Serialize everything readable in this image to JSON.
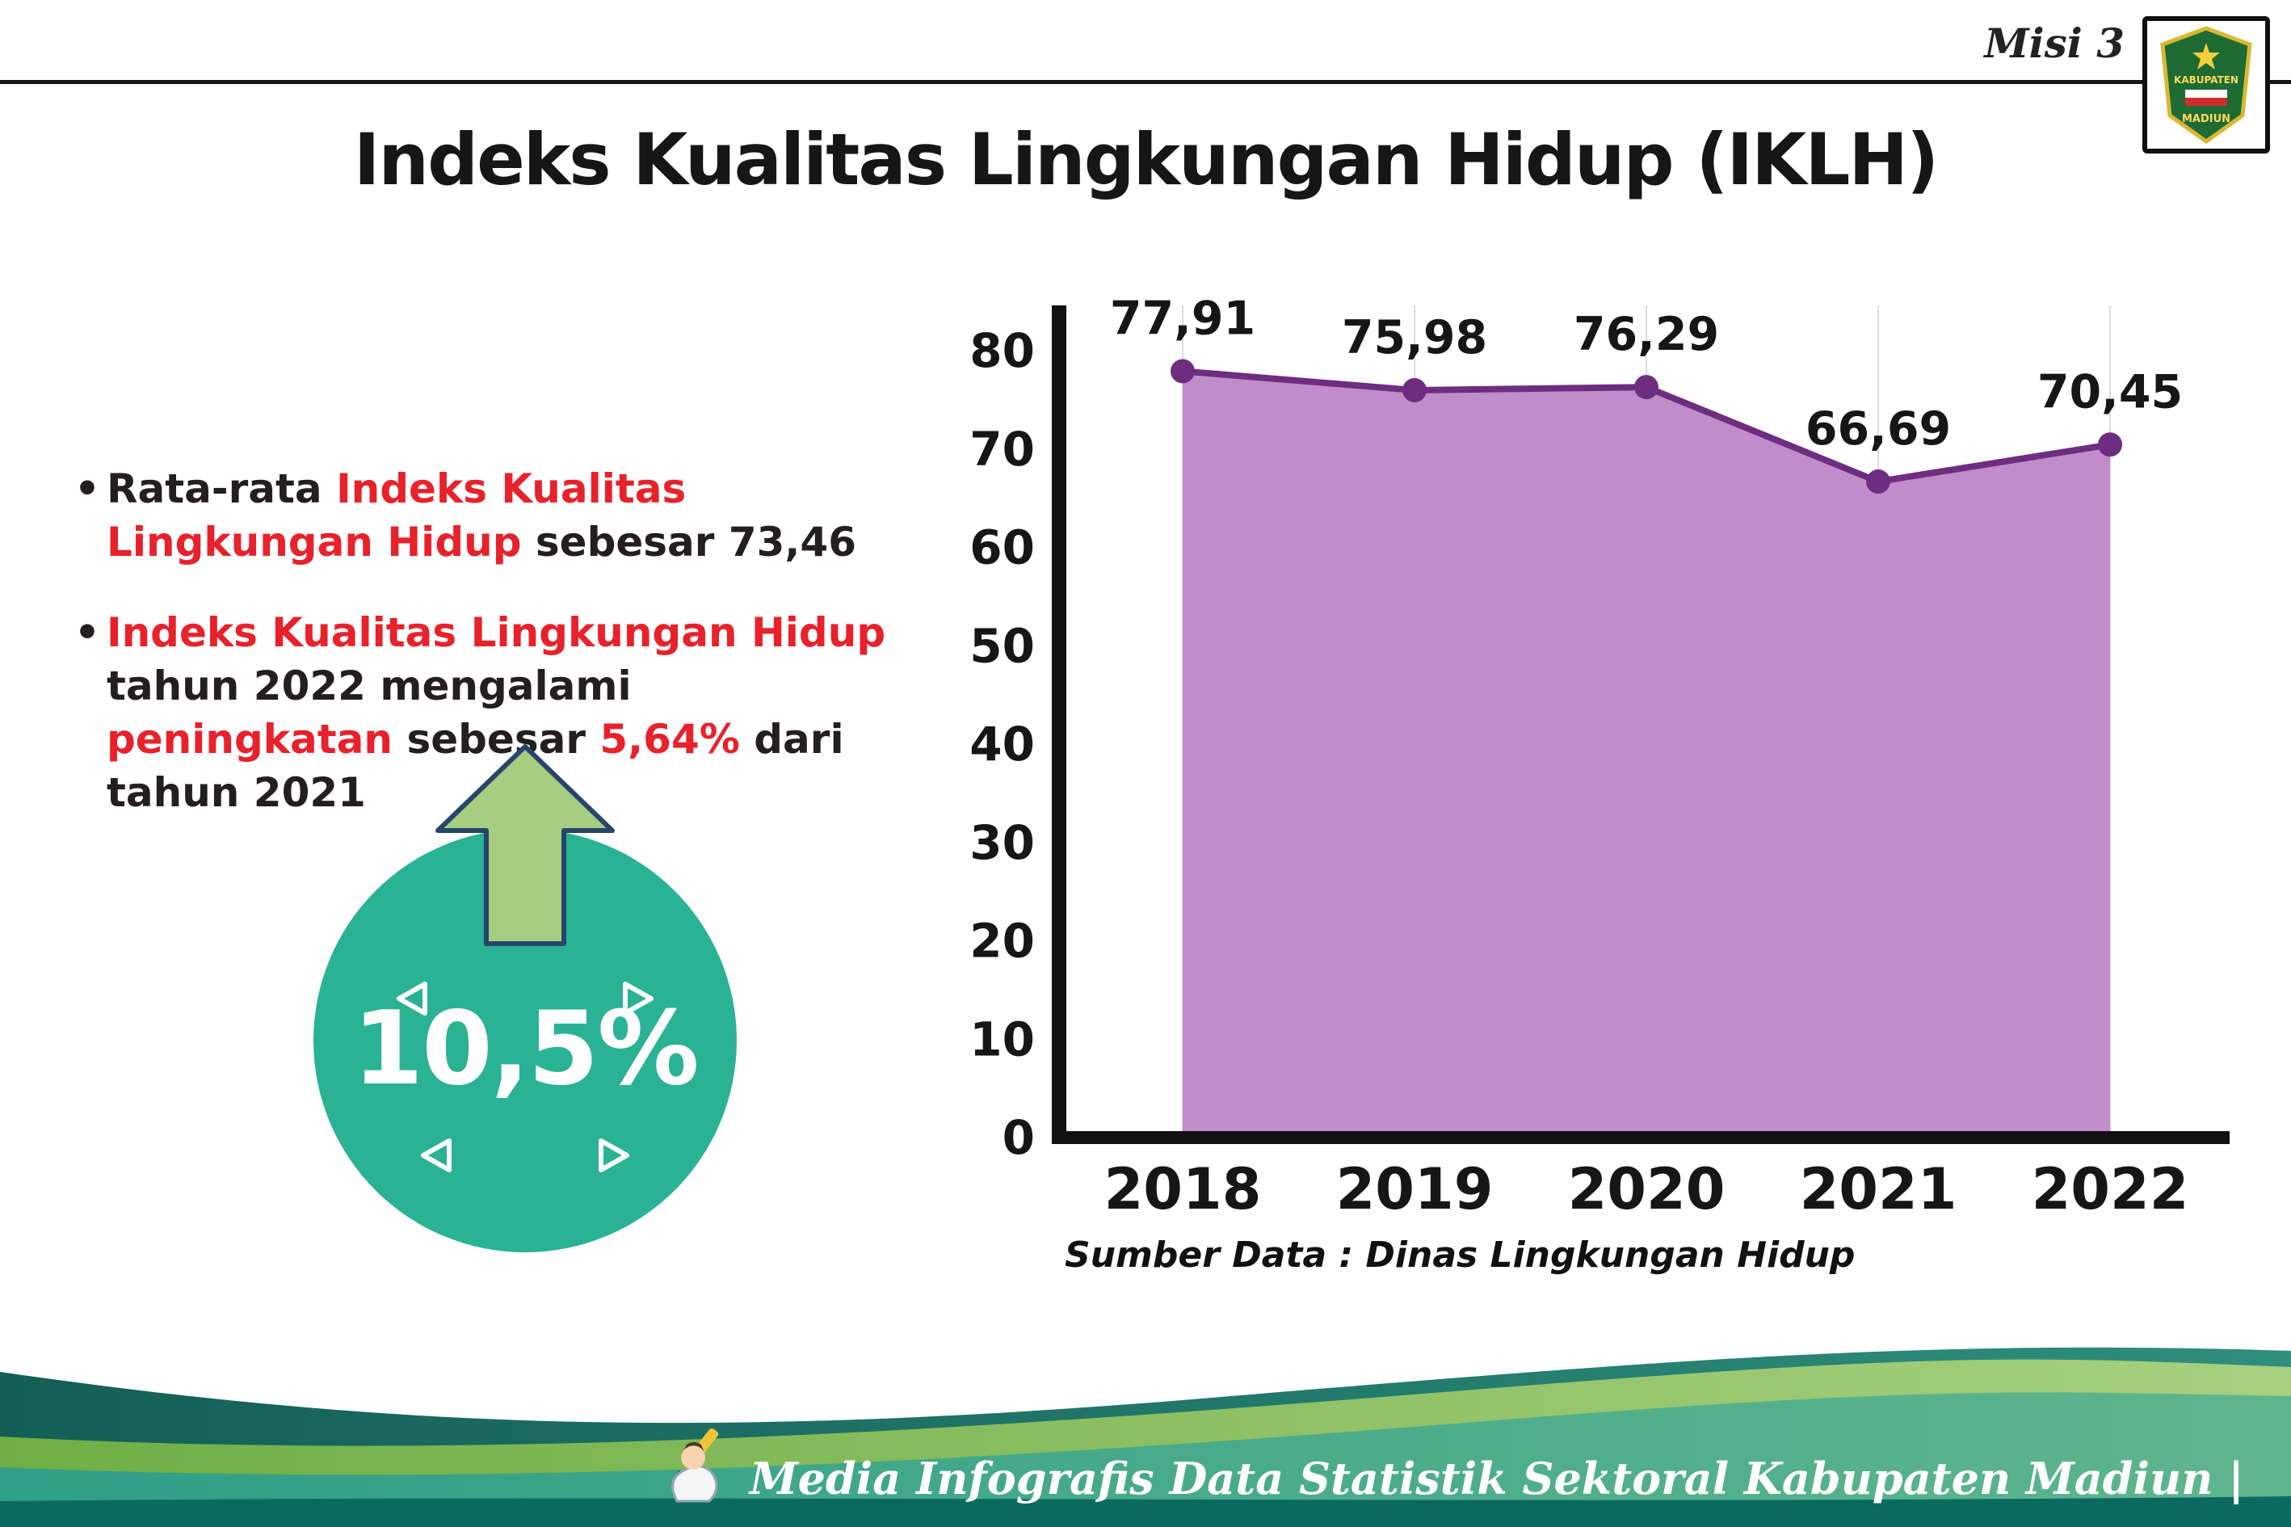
{
  "meta": {
    "mission": "Misi 3"
  },
  "logo": {
    "text_top": "KABUPATEN",
    "text_bottom": "MADIUN"
  },
  "title": "Indeks Kualitas Lingkungan Hidup (IKLH)",
  "bullets": {
    "bullet_char": "•",
    "items": [
      {
        "segments": [
          {
            "text": "Rata-rata ",
            "color": "dark"
          },
          {
            "text": "Indeks Kualitas Lingkungan Hidup",
            "color": "red"
          },
          {
            "text": " sebesar 73,46",
            "color": "dark"
          }
        ]
      },
      {
        "segments": [
          {
            "text": "Indeks Kualitas Lingkungan Hidup",
            "color": "red"
          },
          {
            "text": " tahun 2022 mengalami ",
            "color": "dark"
          },
          {
            "text": "peningkatan",
            "color": "red"
          },
          {
            "text": " sebesar ",
            "color": "dark"
          },
          {
            "text": "5,64%",
            "color": "red"
          },
          {
            "text": " dari tahun 2021",
            "color": "dark"
          }
        ]
      }
    ]
  },
  "badge": {
    "value": "10,5%"
  },
  "chart_data": {
    "type": "area",
    "title": "",
    "xlabel": "",
    "ylabel": "",
    "categories": [
      "2018",
      "2019",
      "2020",
      "2021",
      "2022"
    ],
    "values": [
      77.91,
      75.98,
      76.29,
      66.69,
      70.45
    ],
    "value_labels": [
      "77,91",
      "75,98",
      "76,29",
      "66,69",
      "70,45"
    ],
    "ylim": [
      0,
      80
    ],
    "ytick_step": 10,
    "grid": "vertical",
    "legend": "none",
    "colors": {
      "area": "#c08cc9",
      "line": "#6e2e80",
      "point": "#6e2e80",
      "axis": "#111111",
      "grid": "#dcdcdc",
      "label": "#161616"
    }
  },
  "source_note": "Sumber Data : Dinas Lingkungan Hidup",
  "footer": {
    "credit": "Media Infografis Data Statistik Sektoral Kabupaten Madiun |"
  },
  "colors": {
    "accent_red": "#e8212b",
    "badge_teal": "#2ab294",
    "arrow_green": "#a6cd80",
    "arrow_outline": "#27456b",
    "footer_dark": "#135f56",
    "footer_light_green": "#7cb84e",
    "footer_main_teal": "#2f9f87",
    "footer_strip": "#0b6a60"
  }
}
